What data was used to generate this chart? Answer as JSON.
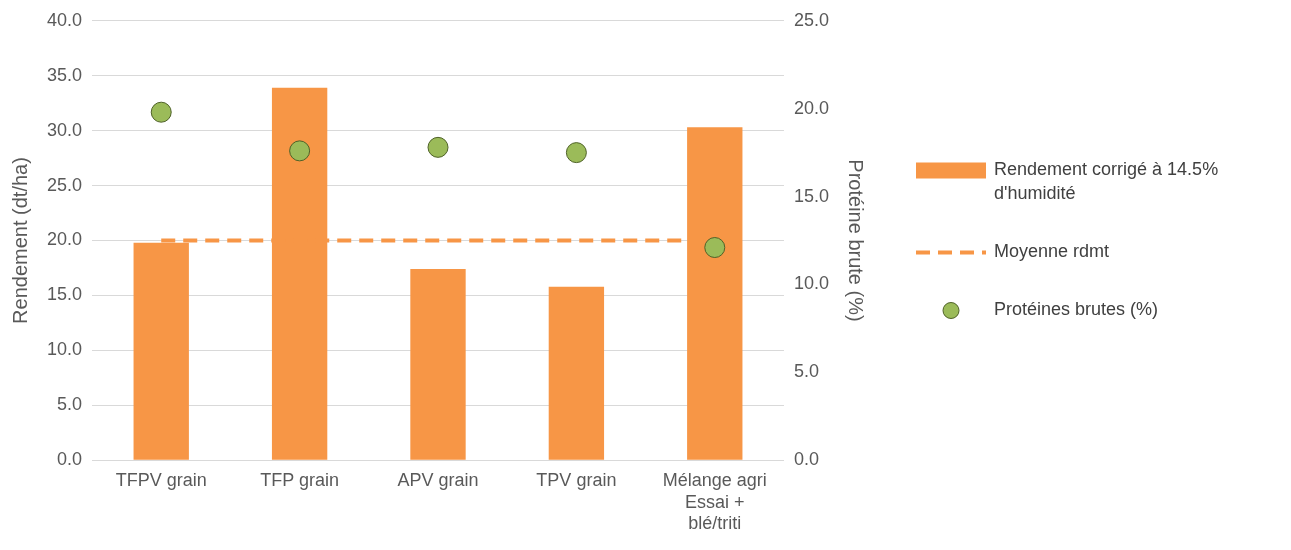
{
  "chart_data": {
    "type": "bar",
    "ylabel": "Rendement (dt/ha)",
    "y2label": "Protéine brute (%)",
    "categories": [
      "TFPV grain",
      "TFP grain",
      "APV grain",
      "TPV grain",
      "Mélange agri Essai + blé/triti"
    ],
    "series": [
      {
        "name": "Rendement corrigé à 14.5% d'humidité",
        "color": "#f79646",
        "values": [
          19.8,
          33.9,
          17.4,
          15.8,
          30.3
        ]
      },
      {
        "type": "line",
        "name": "Moyenne rdmt",
        "color": "#f79646",
        "line_style": "dashed",
        "marker": "none",
        "values": [
          20.0,
          20.0,
          20.0,
          20.0,
          20.0
        ]
      },
      {
        "type": "scatter",
        "name": "Protéines brutes (%)",
        "color": "#9bbb59",
        "marker": "circle",
        "axis": "y2",
        "values": [
          19.8,
          17.6,
          17.8,
          17.5,
          12.1
        ]
      }
    ],
    "ylim": [
      0,
      40
    ],
    "yticks": [
      {
        "value": 0,
        "label": "0.0"
      },
      {
        "value": 5,
        "label": "5.0"
      },
      {
        "value": 10,
        "label": "10.0"
      },
      {
        "value": 15,
        "label": "15.0"
      },
      {
        "value": 20,
        "label": "20.0"
      },
      {
        "value": 25,
        "label": "25.0"
      },
      {
        "value": 30,
        "label": "30.0"
      },
      {
        "value": 35,
        "label": "35.0"
      },
      {
        "value": 40,
        "label": "40.0"
      }
    ],
    "y2lim": [
      0,
      25
    ],
    "y2ticks": [
      {
        "value": 0,
        "label": "0.0"
      },
      {
        "value": 5,
        "label": "5.0"
      },
      {
        "value": 10,
        "label": "10.0"
      },
      {
        "value": 15,
        "label": "15.0"
      },
      {
        "value": 20,
        "label": "20.0"
      },
      {
        "value": 25,
        "label": "25.0"
      }
    ],
    "grid": "y",
    "legend": "right"
  }
}
